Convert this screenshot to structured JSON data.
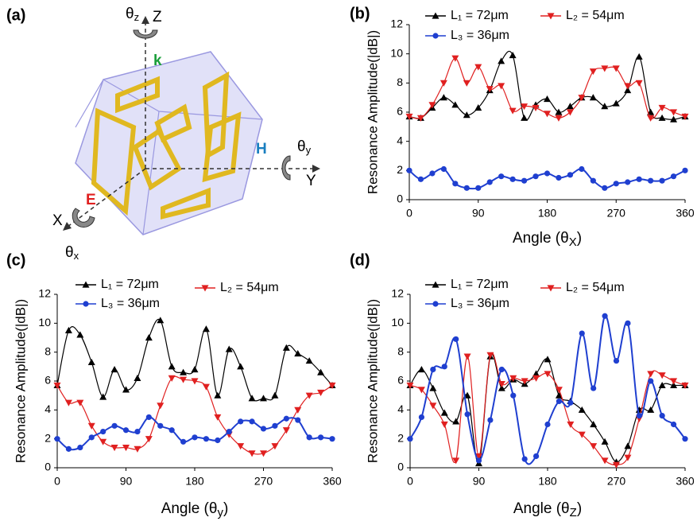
{
  "diagram": {
    "panel_label": "(a)",
    "theta_z": {
      "symbol": "θ",
      "sub": "z"
    },
    "z_axis": "Z",
    "k": "k",
    "h": "H",
    "theta_y": {
      "symbol": "θ",
      "sub": "y"
    },
    "y_axis": "Y",
    "e": "E",
    "x_axis": "X",
    "theta_x": {
      "symbol": "θ",
      "sub": "x"
    }
  },
  "chart_data": [
    {
      "type": "line",
      "panel_label": "(b)",
      "x_label": [
        "Angle (θ",
        "X",
        ")"
      ],
      "y_label": "Resonance Amplitude(|dB|)",
      "x": [
        0,
        15,
        30,
        45,
        60,
        75,
        90,
        105,
        120,
        135,
        150,
        165,
        180,
        195,
        210,
        225,
        240,
        255,
        270,
        285,
        300,
        315,
        330,
        345,
        360
      ],
      "xlim": [
        0,
        360
      ],
      "xticks": [
        0,
        90,
        180,
        270,
        360
      ],
      "ylim": [
        0,
        12
      ],
      "yticks": [
        0,
        2,
        4,
        6,
        8,
        10,
        12
      ],
      "series": [
        {
          "name": "L₁ = 72μm",
          "color": "#000000",
          "marker": "triangle-up",
          "values": [
            5.7,
            5.6,
            6.3,
            7.0,
            6.5,
            5.8,
            6.3,
            7.5,
            9.5,
            9.9,
            5.6,
            6.5,
            6.9,
            6.0,
            6.4,
            7.0,
            7.0,
            6.4,
            6.6,
            7.5,
            9.8,
            6.0,
            5.6,
            5.5,
            5.7
          ]
        },
        {
          "name": "L₂ = 54μm",
          "color": "#e02020",
          "marker": "triangle-down",
          "values": [
            5.7,
            5.6,
            6.5,
            8.0,
            9.7,
            8.0,
            9.1,
            7.6,
            7.8,
            6.1,
            6.4,
            6.3,
            5.9,
            5.6,
            6.0,
            7.0,
            8.8,
            9.0,
            9.0,
            7.8,
            8.0,
            5.6,
            6.3,
            6.0,
            5.7
          ]
        },
        {
          "name": "L₃ = 36μm",
          "color": "#1f3fd0",
          "marker": "circle",
          "values": [
            2.0,
            1.4,
            1.8,
            2.1,
            1.1,
            0.8,
            0.8,
            1.2,
            1.6,
            1.4,
            1.3,
            1.6,
            1.8,
            1.5,
            1.7,
            2.1,
            1.3,
            0.8,
            1.1,
            1.2,
            1.4,
            1.3,
            1.3,
            1.6,
            2.0
          ]
        }
      ]
    },
    {
      "type": "line",
      "panel_label": "(c)",
      "x_label": [
        "Angle (θ",
        "y",
        ")"
      ],
      "y_label": "Resonance Amplitude(|dB|)",
      "x": [
        0,
        15,
        30,
        45,
        60,
        75,
        90,
        105,
        120,
        135,
        150,
        165,
        180,
        195,
        210,
        225,
        240,
        255,
        270,
        285,
        300,
        315,
        330,
        345,
        360
      ],
      "xlim": [
        0,
        360
      ],
      "xticks": [
        0,
        90,
        180,
        270,
        360
      ],
      "ylim": [
        0,
        12
      ],
      "yticks": [
        0,
        2,
        4,
        6,
        8,
        10,
        12
      ],
      "series": [
        {
          "name": "L₁ = 72μm",
          "color": "#000000",
          "marker": "triangle-up",
          "values": [
            5.7,
            9.5,
            9.2,
            7.3,
            4.9,
            6.8,
            5.4,
            6.2,
            9.0,
            10.2,
            7.0,
            6.6,
            6.8,
            9.6,
            5.0,
            8.2,
            7.0,
            4.8,
            4.8,
            5.0,
            8.3,
            7.9,
            7.4,
            6.6,
            5.7
          ]
        },
        {
          "name": "L₂ = 54μm",
          "color": "#e02020",
          "marker": "triangle-down",
          "values": [
            5.7,
            4.5,
            4.5,
            2.9,
            1.8,
            1.4,
            1.4,
            1.3,
            2.0,
            4.3,
            6.2,
            6.1,
            6.0,
            5.6,
            3.5,
            2.3,
            1.5,
            1.0,
            1.0,
            1.5,
            2.6,
            4.0,
            5.0,
            5.2,
            5.7
          ]
        },
        {
          "name": "L₃ = 36μm",
          "color": "#1f3fd0",
          "marker": "circle",
          "values": [
            2.0,
            1.3,
            1.4,
            2.1,
            2.5,
            2.9,
            2.6,
            2.5,
            3.5,
            2.9,
            2.6,
            1.8,
            2.1,
            2.0,
            1.9,
            2.5,
            3.2,
            3.2,
            2.7,
            2.9,
            3.4,
            3.3,
            2.1,
            2.1,
            2.0
          ]
        }
      ]
    },
    {
      "type": "line",
      "panel_label": "(d)",
      "x_label": [
        "Angle (θ",
        "Z",
        ")"
      ],
      "y_label": "Resonance Amplitude(|dB|)",
      "x": [
        0,
        15,
        30,
        45,
        60,
        75,
        90,
        105,
        120,
        135,
        150,
        165,
        180,
        195,
        210,
        225,
        240,
        255,
        270,
        285,
        300,
        315,
        330,
        345,
        360
      ],
      "xlim": [
        0,
        360
      ],
      "xticks": [
        0,
        90,
        180,
        270,
        360
      ],
      "ylim": [
        0,
        12
      ],
      "yticks": [
        0,
        2,
        4,
        6,
        8,
        10,
        12
      ],
      "series": [
        {
          "name": "L₁ = 72μm",
          "color": "#000000",
          "marker": "triangle-up",
          "values": [
            5.7,
            6.8,
            5.5,
            3.8,
            3.2,
            5.0,
            0.3,
            7.7,
            5.5,
            6.1,
            5.8,
            6.5,
            7.5,
            5.0,
            4.6,
            4.0,
            3.0,
            1.8,
            0.4,
            1.5,
            4.0,
            4.0,
            5.7,
            5.7,
            5.7
          ]
        },
        {
          "name": "L₂ = 54μm",
          "color": "#e02020",
          "marker": "triangle-down",
          "values": [
            5.7,
            5.4,
            4.3,
            3.0,
            0.5,
            7.7,
            0.8,
            7.8,
            5.8,
            6.2,
            6.0,
            6.2,
            6.5,
            5.4,
            3.0,
            2.3,
            1.5,
            0.5,
            0.2,
            0.7,
            3.4,
            6.5,
            6.4,
            6.0,
            5.7
          ]
        },
        {
          "name": "L₃ = 36μm",
          "color": "#1f3fd0",
          "marker": "circle",
          "values": [
            2.0,
            3.5,
            6.8,
            7.0,
            8.9,
            3.7,
            0.5,
            3.3,
            6.8,
            5.0,
            0.6,
            0.8,
            3.0,
            4.6,
            4.5,
            9.3,
            5.5,
            10.5,
            7.4,
            10.0,
            3.6,
            6.0,
            3.6,
            3.0,
            2.0
          ]
        }
      ]
    }
  ]
}
